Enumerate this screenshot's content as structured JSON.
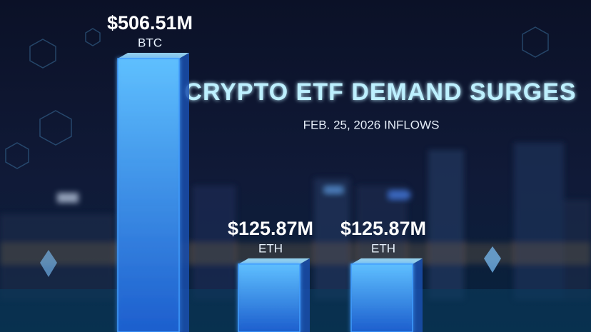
{
  "chart_data": {
    "type": "bar",
    "title": "CRYPTO ETF DEMAND SURGES",
    "subtitle": "FEB. 25, 2026 INFLOWS",
    "categories": [
      "BTC",
      "ETH",
      "ETH"
    ],
    "values": [
      506.51,
      125.87,
      125.87
    ],
    "value_labels": [
      "$506.51M",
      "$125.87M",
      "$125.87M"
    ],
    "color": "#3f9cff"
  }
}
